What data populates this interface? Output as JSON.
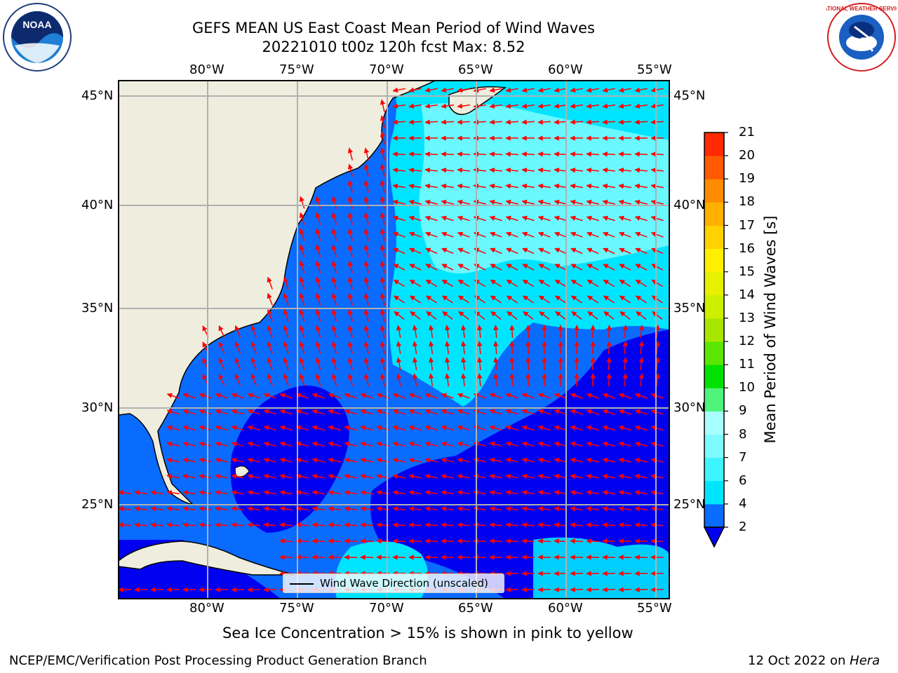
{
  "title_line1": "GEFS MEAN US East Coast Mean Period of Wind Waves",
  "title_line2": "20221010 t00z 120h fcst   Max: 8.52",
  "logos": {
    "left": "noaa-logo",
    "left_text": "NOAA",
    "right": "nws-logo",
    "right_text": "NATIONAL WEATHER SERVICE"
  },
  "longitude_labels": [
    "80°W",
    "75°W",
    "70°W",
    "65°W",
    "60°W",
    "55°W"
  ],
  "latitude_labels": [
    "45°N",
    "40°N",
    "35°N",
    "30°N",
    "25°N"
  ],
  "legend": {
    "label": "Wind Wave Direction (unscaled)"
  },
  "colorbar": {
    "title": "Mean Period of Wind Waves [s]",
    "ticks": [
      "2",
      "4",
      "6",
      "7",
      "8",
      "9",
      "10",
      "11",
      "12",
      "13",
      "14",
      "15",
      "16",
      "17",
      "18",
      "19",
      "20",
      "21"
    ],
    "colors": [
      "#0a6bff",
      "#00e5ff",
      "#3df5ff",
      "#7dfbff",
      "#a8ffff",
      "#4ff57a",
      "#00e100",
      "#5ae600",
      "#a8e600",
      "#cdf000",
      "#e6f000",
      "#fff000",
      "#ffd200",
      "#ffb000",
      "#ff8c00",
      "#ff5a00",
      "#ff2a00"
    ],
    "under_color": "#0000f0"
  },
  "colors": {
    "land": "#efedde",
    "ocean_low": "#0000f0",
    "ocean_mid": "#0a6bff",
    "ocean_cyan": "#00e5ff",
    "ocean_light": "#7dfbff",
    "arrow": "#ff0000",
    "grid": "#b0b0b0"
  },
  "caption": "Sea Ice Concentration > 15% is shown in pink to yellow",
  "footer_left": "NCEP/EMC/Verification Post Processing Product Generation Branch",
  "footer_right_date": "12 Oct 2022 on ",
  "footer_right_machine": "Hera"
}
